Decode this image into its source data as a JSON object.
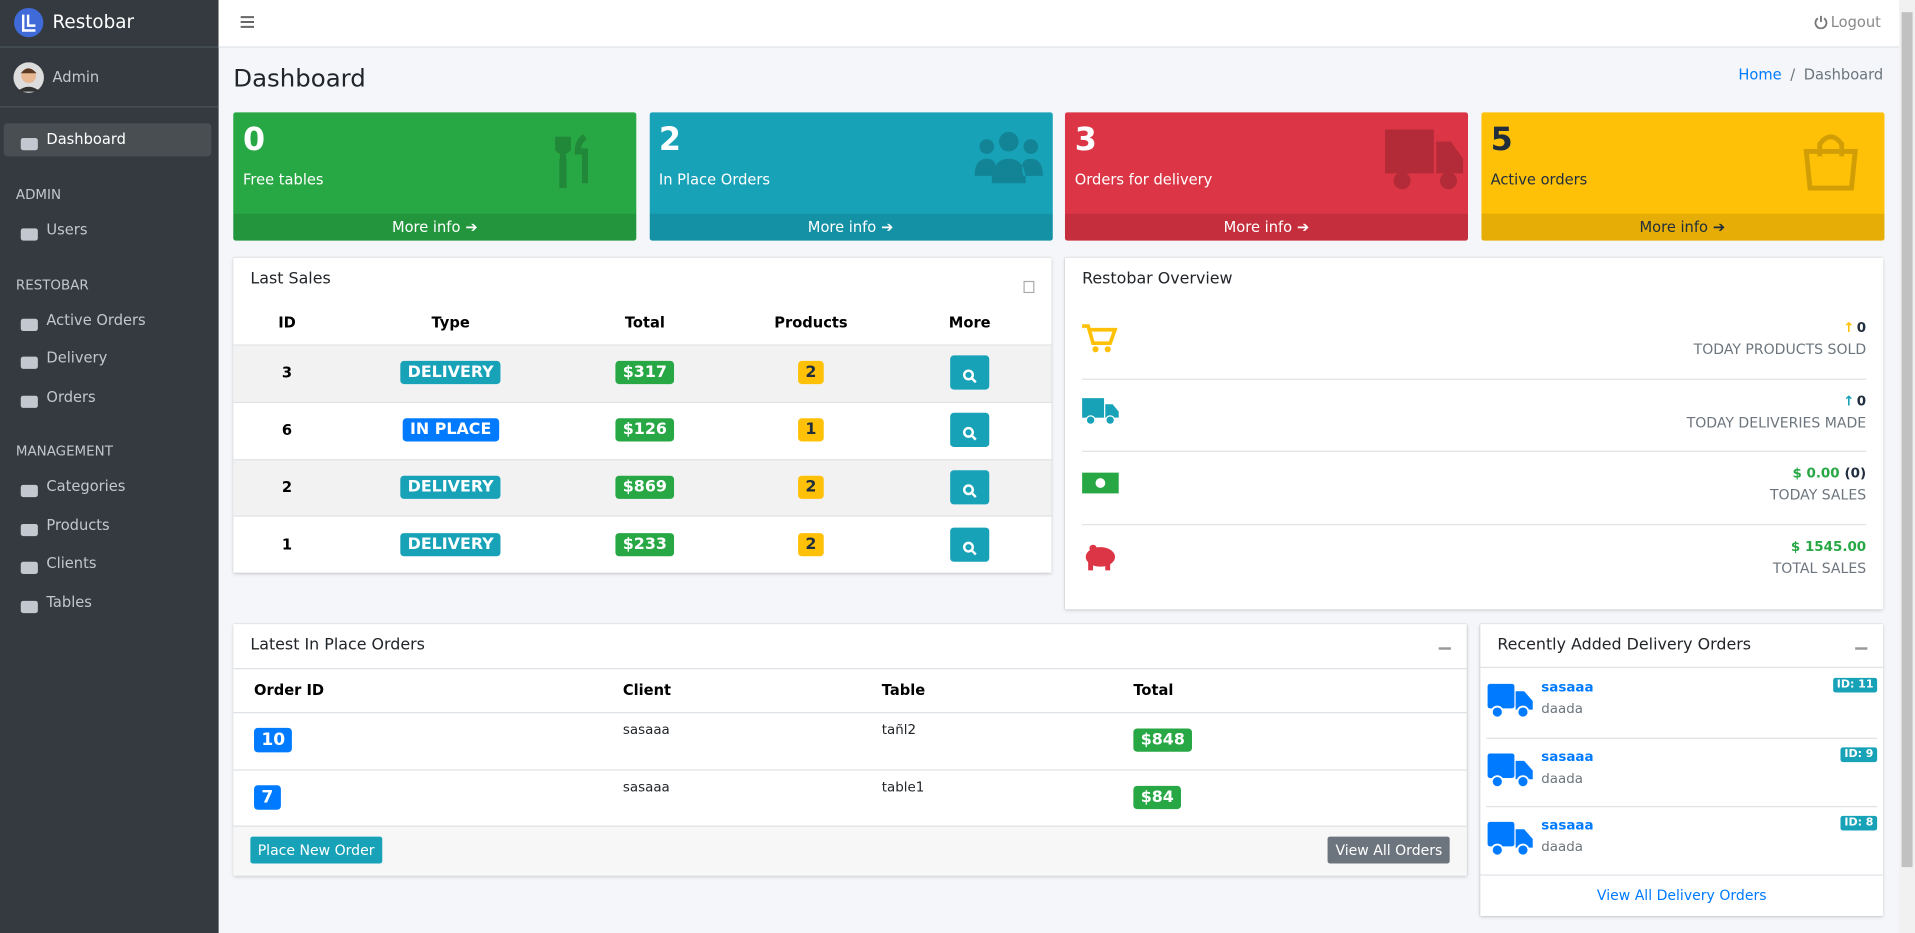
{
  "brand": "Restobar",
  "user": "Admin",
  "sidebar": {
    "top": [
      "Dashboard"
    ],
    "sections": [
      {
        "title": "ADMIN",
        "items": [
          "Users"
        ]
      },
      {
        "title": "RESTOBAR",
        "items": [
          "Active Orders",
          "Delivery",
          "Orders"
        ]
      },
      {
        "title": "MANAGEMENT",
        "items": [
          "Categories",
          "Products",
          "Clients",
          "Tables"
        ]
      }
    ]
  },
  "header": {
    "logout": "Logout"
  },
  "page": {
    "title": "Dashboard",
    "breadcrumb": [
      "Home",
      "Dashboard"
    ]
  },
  "boxes": [
    {
      "value": 0,
      "label": "Free tables",
      "link": "More info",
      "color": "#28a745"
    },
    {
      "value": 2,
      "label": "In Place Orders",
      "link": "More info",
      "color": "#17a2b8"
    },
    {
      "value": 3,
      "label": "Orders for delivery",
      "link": "More info",
      "color": "#dc3545"
    },
    {
      "value": 5,
      "label": "Active orders",
      "link": "More info",
      "color": "#ffc107"
    }
  ],
  "last_sales": {
    "title": "Last Sales",
    "columns": [
      "ID",
      "Type",
      "Total",
      "Products",
      "More"
    ],
    "rows": [
      {
        "id": 3,
        "type": "DELIVERY",
        "type_color": "#17a2b8",
        "total": "$317",
        "products": 2
      },
      {
        "id": 6,
        "type": "IN PLACE",
        "type_color": "#007bff",
        "total": "$126",
        "products": 1
      },
      {
        "id": 2,
        "type": "DELIVERY",
        "type_color": "#17a2b8",
        "total": "$869",
        "products": 2
      },
      {
        "id": 1,
        "type": "DELIVERY",
        "type_color": "#17a2b8",
        "total": "$233",
        "products": 2
      }
    ]
  },
  "overview": {
    "title": "Restobar Overview",
    "items": [
      {
        "value": 0,
        "label": "TODAY PRODUCTS SOLD",
        "color": "#ffc107"
      },
      {
        "value": 0,
        "label": "TODAY DELIVERIES MADE",
        "color": "#17a2b8"
      },
      {
        "value": "$ 0.00",
        "extra": "(0)",
        "label": "TODAY SALES",
        "color": "#28a745"
      },
      {
        "value": "$ 1545.00",
        "label": "TOTAL SALES",
        "color": "#dc3545"
      }
    ]
  },
  "inplace": {
    "title": "Latest In Place Orders",
    "columns": [
      "Order ID",
      "Client",
      "Table",
      "Total"
    ],
    "rows": [
      {
        "id": 10,
        "client": "sasaaa",
        "table": "tañl2",
        "total": "$848"
      },
      {
        "id": 7,
        "client": "sasaaa",
        "table": "table1",
        "total": "$84"
      }
    ],
    "new": "Place New Order",
    "all": "View All Orders"
  },
  "delivery": {
    "title": "Recently Added Delivery Orders",
    "items": [
      {
        "name": "sasaaa",
        "detail": "daada",
        "id": "ID: 11"
      },
      {
        "name": "sasaaa",
        "detail": "daada",
        "id": "ID: 9"
      },
      {
        "name": "sasaaa",
        "detail": "daada",
        "id": "ID: 8"
      }
    ],
    "all": "View All Delivery Orders"
  }
}
